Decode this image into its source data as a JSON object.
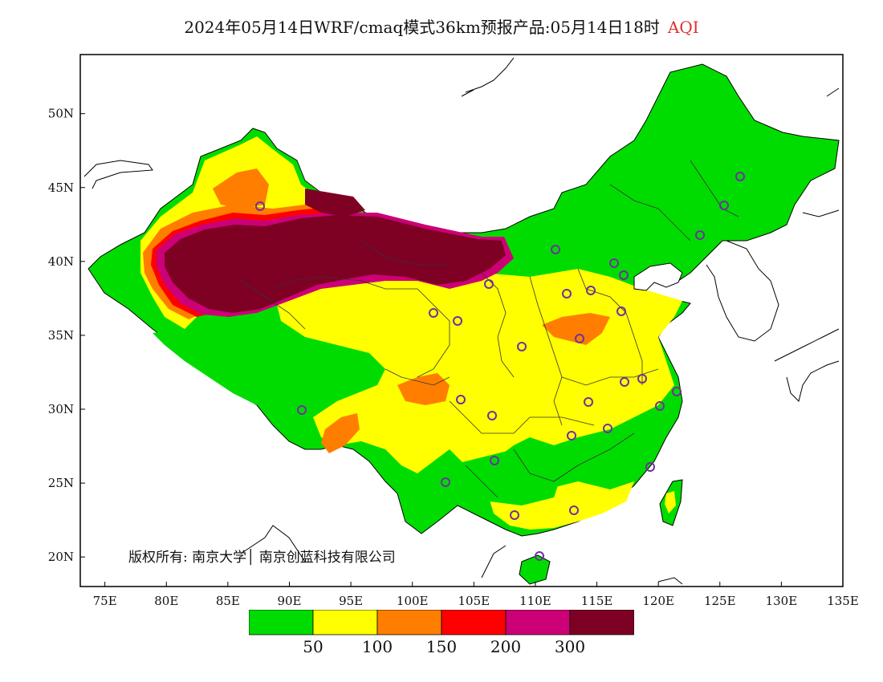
{
  "title": {
    "text": "2024年05月14日WRF/cmaq模式36km预报产品:05月14日18时",
    "variable": "AQI",
    "variable_color": "#e03030"
  },
  "axes": {
    "x_ticks": [
      "75E",
      "80E",
      "85E",
      "90E",
      "95E",
      "100E",
      "105E",
      "110E",
      "115E",
      "120E",
      "125E",
      "130E",
      "135E"
    ],
    "y_ticks": [
      "20N",
      "25N",
      "30N",
      "35N",
      "40N",
      "45N",
      "50N"
    ],
    "lon_range": [
      73,
      135
    ],
    "lat_range": [
      18,
      54
    ]
  },
  "legend": {
    "colors": [
      "#00dc00",
      "#ffff00",
      "#ff7e00",
      "#ff0000",
      "#cc0077",
      "#7e0023"
    ],
    "labels": [
      "50",
      "100",
      "150",
      "200",
      "300"
    ]
  },
  "copyright": "版权所有: 南京大学│ 南京创蓝科技有限公司",
  "map": {
    "base_color": "#00dc00",
    "regions": [
      {
        "name": "taklimakan-core",
        "level": "hazardous"
      },
      {
        "name": "inner-mongolia-west",
        "level": "hazardous"
      },
      {
        "name": "north-china-plain",
        "level": "moderate"
      },
      {
        "name": "sichuan-basin",
        "level": "unhealthy-sensitive"
      },
      {
        "name": "northeast-china",
        "level": "good"
      },
      {
        "name": "tibet-plateau",
        "level": "good"
      }
    ]
  }
}
